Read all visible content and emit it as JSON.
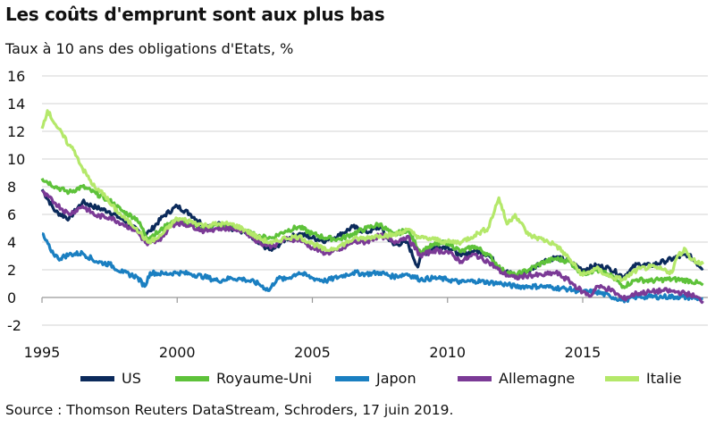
{
  "title": "Les coûts d'emprunt sont aux plus bas",
  "subtitle": "Taux à 10 ans des obligations d'Etats, %",
  "source": "Source : Thomson Reuters DataStream, Schroders, 17 juin 2019.",
  "chart_data": {
    "type": "line",
    "title": "Les coûts d'emprunt sont aux plus bas",
    "ylabel": "Taux à 10 ans des obligations d'Etats, %",
    "xlabel": "",
    "xlim": [
      1995,
      2019.45
    ],
    "ylim": [
      -2,
      16
    ],
    "x_ticks": [
      "1995",
      "2000",
      "2005",
      "2010",
      "2015"
    ],
    "y_ticks": [
      "16",
      "14",
      "12",
      "10",
      "8",
      "6",
      "4",
      "2",
      "0",
      "-2"
    ],
    "grid": true,
    "legend_position": "bottom",
    "series": [
      {
        "name": "US",
        "color": "#0b2a5b",
        "points": [
          [
            1995,
            7.8
          ],
          [
            1995.5,
            6.2
          ],
          [
            1996,
            5.7
          ],
          [
            1996.5,
            6.9
          ],
          [
            1997,
            6.5
          ],
          [
            1997.5,
            6.2
          ],
          [
            1998,
            5.6
          ],
          [
            1998.75,
            4.5
          ],
          [
            1999,
            4.8
          ],
          [
            1999.5,
            5.9
          ],
          [
            2000,
            6.6
          ],
          [
            2000.5,
            6.0
          ],
          [
            2001,
            5.2
          ],
          [
            2001.5,
            5.3
          ],
          [
            2002,
            5.0
          ],
          [
            2002.5,
            4.7
          ],
          [
            2003,
            3.9
          ],
          [
            2003.5,
            3.4
          ],
          [
            2004,
            4.2
          ],
          [
            2004.5,
            4.6
          ],
          [
            2005,
            4.3
          ],
          [
            2005.5,
            4.1
          ],
          [
            2006,
            4.5
          ],
          [
            2006.5,
            5.1
          ],
          [
            2007,
            4.7
          ],
          [
            2007.5,
            5.1
          ],
          [
            2008,
            3.8
          ],
          [
            2008.5,
            4.0
          ],
          [
            2008.9,
            2.2
          ],
          [
            2009,
            3.0
          ],
          [
            2009.5,
            3.6
          ],
          [
            2010,
            3.7
          ],
          [
            2010.5,
            3.0
          ],
          [
            2011,
            3.4
          ],
          [
            2011.5,
            3.1
          ],
          [
            2012,
            2.0
          ],
          [
            2012.5,
            1.6
          ],
          [
            2013,
            1.9
          ],
          [
            2013.5,
            2.6
          ],
          [
            2014,
            2.9
          ],
          [
            2014.5,
            2.6
          ],
          [
            2015,
            2.0
          ],
          [
            2015.5,
            2.3
          ],
          [
            2016,
            2.1
          ],
          [
            2016.5,
            1.5
          ],
          [
            2017,
            2.4
          ],
          [
            2017.5,
            2.3
          ],
          [
            2018,
            2.6
          ],
          [
            2018.5,
            2.9
          ],
          [
            2018.9,
            3.1
          ],
          [
            2019.2,
            2.5
          ],
          [
            2019.45,
            2.1
          ]
        ]
      },
      {
        "name": "Royaume-Uni",
        "color": "#5ec23a",
        "points": [
          [
            1995,
            8.6
          ],
          [
            1995.5,
            8.0
          ],
          [
            1996,
            7.6
          ],
          [
            1996.5,
            8.0
          ],
          [
            1997,
            7.5
          ],
          [
            1997.5,
            7.0
          ],
          [
            1998,
            6.2
          ],
          [
            1998.5,
            5.7
          ],
          [
            1998.9,
            4.3
          ],
          [
            1999.3,
            4.7
          ],
          [
            1999.8,
            5.5
          ],
          [
            2000,
            5.5
          ],
          [
            2000.5,
            5.2
          ],
          [
            2001,
            5.0
          ],
          [
            2001.5,
            5.2
          ],
          [
            2002,
            5.1
          ],
          [
            2002.5,
            4.8
          ],
          [
            2003,
            4.4
          ],
          [
            2003.5,
            4.3
          ],
          [
            2004,
            4.8
          ],
          [
            2004.5,
            5.1
          ],
          [
            2005,
            4.6
          ],
          [
            2005.5,
            4.3
          ],
          [
            2006,
            4.2
          ],
          [
            2006.5,
            4.6
          ],
          [
            2007,
            5.0
          ],
          [
            2007.5,
            5.3
          ],
          [
            2008,
            4.5
          ],
          [
            2008.5,
            4.9
          ],
          [
            2009,
            3.3
          ],
          [
            2009.5,
            3.8
          ],
          [
            2010,
            4.0
          ],
          [
            2010.5,
            3.3
          ],
          [
            2011,
            3.7
          ],
          [
            2011.5,
            3.1
          ],
          [
            2012,
            2.0
          ],
          [
            2012.5,
            1.6
          ],
          [
            2013,
            2.0
          ],
          [
            2013.5,
            2.5
          ],
          [
            2014,
            2.8
          ],
          [
            2014.5,
            2.6
          ],
          [
            2015,
            1.7
          ],
          [
            2015.5,
            2.0
          ],
          [
            2016,
            1.6
          ],
          [
            2016.5,
            0.8
          ],
          [
            2017,
            1.3
          ],
          [
            2017.5,
            1.2
          ],
          [
            2018,
            1.3
          ],
          [
            2018.5,
            1.3
          ],
          [
            2019,
            1.2
          ],
          [
            2019.45,
            0.9
          ]
        ]
      },
      {
        "name": "Japon",
        "color": "#1a7fc1",
        "points": [
          [
            1995,
            4.6
          ],
          [
            1995.3,
            3.5
          ],
          [
            1995.6,
            2.8
          ],
          [
            1996,
            3.1
          ],
          [
            1996.5,
            3.2
          ],
          [
            1997,
            2.6
          ],
          [
            1997.5,
            2.4
          ],
          [
            1998,
            1.8
          ],
          [
            1998.5,
            1.5
          ],
          [
            1998.8,
            0.8
          ],
          [
            1999,
            1.8
          ],
          [
            1999.5,
            1.7
          ],
          [
            2000,
            1.8
          ],
          [
            2000.5,
            1.7
          ],
          [
            2001,
            1.5
          ],
          [
            2001.5,
            1.2
          ],
          [
            2002,
            1.4
          ],
          [
            2002.5,
            1.3
          ],
          [
            2003,
            1.0
          ],
          [
            2003.4,
            0.5
          ],
          [
            2003.7,
            1.4
          ],
          [
            2004,
            1.3
          ],
          [
            2004.5,
            1.8
          ],
          [
            2005,
            1.4
          ],
          [
            2005.5,
            1.2
          ],
          [
            2006,
            1.5
          ],
          [
            2006.5,
            1.8
          ],
          [
            2007,
            1.7
          ],
          [
            2007.5,
            1.8
          ],
          [
            2008,
            1.5
          ],
          [
            2008.5,
            1.7
          ],
          [
            2009,
            1.3
          ],
          [
            2009.5,
            1.4
          ],
          [
            2010,
            1.3
          ],
          [
            2010.5,
            1.1
          ],
          [
            2011,
            1.2
          ],
          [
            2011.5,
            1.1
          ],
          [
            2012,
            1.0
          ],
          [
            2012.5,
            0.8
          ],
          [
            2013,
            0.8
          ],
          [
            2013.5,
            0.8
          ],
          [
            2014,
            0.7
          ],
          [
            2014.5,
            0.6
          ],
          [
            2015,
            0.4
          ],
          [
            2015.5,
            0.4
          ],
          [
            2016,
            0.1
          ],
          [
            2016.5,
            -0.2
          ],
          [
            2017,
            0.05
          ],
          [
            2017.5,
            0.05
          ],
          [
            2018,
            0.05
          ],
          [
            2018.5,
            0.05
          ],
          [
            2019,
            0.0
          ],
          [
            2019.45,
            -0.1
          ]
        ]
      },
      {
        "name": "Allemagne",
        "color": "#7b3a96",
        "points": [
          [
            1995,
            7.6
          ],
          [
            1995.5,
            6.8
          ],
          [
            1996,
            6.0
          ],
          [
            1996.5,
            6.6
          ],
          [
            1997,
            5.9
          ],
          [
            1997.5,
            5.8
          ],
          [
            1998,
            5.3
          ],
          [
            1998.5,
            4.8
          ],
          [
            1998.9,
            3.8
          ],
          [
            1999.3,
            4.1
          ],
          [
            1999.8,
            5.2
          ],
          [
            2000,
            5.4
          ],
          [
            2000.5,
            5.2
          ],
          [
            2001,
            4.8
          ],
          [
            2001.5,
            5.0
          ],
          [
            2002,
            5.0
          ],
          [
            2002.5,
            4.8
          ],
          [
            2003,
            4.0
          ],
          [
            2003.5,
            3.7
          ],
          [
            2004,
            4.2
          ],
          [
            2004.5,
            4.2
          ],
          [
            2005,
            3.6
          ],
          [
            2005.5,
            3.2
          ],
          [
            2006,
            3.4
          ],
          [
            2006.5,
            4.0
          ],
          [
            2007,
            4.0
          ],
          [
            2007.5,
            4.5
          ],
          [
            2008,
            4.0
          ],
          [
            2008.5,
            4.4
          ],
          [
            2009,
            3.0
          ],
          [
            2009.5,
            3.4
          ],
          [
            2010,
            3.3
          ],
          [
            2010.5,
            2.6
          ],
          [
            2011,
            3.1
          ],
          [
            2011.5,
            2.6
          ],
          [
            2012,
            1.8
          ],
          [
            2012.5,
            1.4
          ],
          [
            2013,
            1.6
          ],
          [
            2013.5,
            1.6
          ],
          [
            2014,
            1.8
          ],
          [
            2014.5,
            1.2
          ],
          [
            2015,
            0.4
          ],
          [
            2015.3,
            0.1
          ],
          [
            2015.5,
            0.8
          ],
          [
            2016,
            0.6
          ],
          [
            2016.5,
            -0.1
          ],
          [
            2017,
            0.3
          ],
          [
            2017.5,
            0.4
          ],
          [
            2018,
            0.5
          ],
          [
            2018.5,
            0.4
          ],
          [
            2019,
            0.2
          ],
          [
            2019.45,
            -0.25
          ]
        ]
      },
      {
        "name": "Italie",
        "color": "#b4e86a",
        "points": [
          [
            1995,
            12.2
          ],
          [
            1995.2,
            13.5
          ],
          [
            1995.5,
            12.5
          ],
          [
            1996,
            11.0
          ],
          [
            1996.2,
            10.6
          ],
          [
            1996.5,
            9.3
          ],
          [
            1997,
            7.8
          ],
          [
            1997.3,
            7.5
          ],
          [
            1997.5,
            6.8
          ],
          [
            1998,
            5.8
          ],
          [
            1998.5,
            5.0
          ],
          [
            1998.9,
            4.0
          ],
          [
            1999.3,
            4.3
          ],
          [
            1999.8,
            5.3
          ],
          [
            2000,
            5.7
          ],
          [
            2000.5,
            5.5
          ],
          [
            2001,
            5.2
          ],
          [
            2001.5,
            5.3
          ],
          [
            2002,
            5.3
          ],
          [
            2002.5,
            4.9
          ],
          [
            2003,
            4.3
          ],
          [
            2003.5,
            3.9
          ],
          [
            2004,
            4.3
          ],
          [
            2004.5,
            4.4
          ],
          [
            2005,
            3.9
          ],
          [
            2005.5,
            3.4
          ],
          [
            2006,
            3.7
          ],
          [
            2006.5,
            4.2
          ],
          [
            2007,
            4.3
          ],
          [
            2007.5,
            4.5
          ],
          [
            2008,
            4.5
          ],
          [
            2008.5,
            4.9
          ],
          [
            2009,
            4.3
          ],
          [
            2009.5,
            4.2
          ],
          [
            2010,
            4.0
          ],
          [
            2010.5,
            4.0
          ],
          [
            2011,
            4.5
          ],
          [
            2011.5,
            5.0
          ],
          [
            2011.9,
            7.2
          ],
          [
            2012.2,
            5.3
          ],
          [
            2012.5,
            6.0
          ],
          [
            2013,
            4.5
          ],
          [
            2013.5,
            4.2
          ],
          [
            2014,
            3.8
          ],
          [
            2014.5,
            2.8
          ],
          [
            2015,
            1.6
          ],
          [
            2015.5,
            2.1
          ],
          [
            2016,
            1.5
          ],
          [
            2016.5,
            1.3
          ],
          [
            2017,
            2.0
          ],
          [
            2017.5,
            2.2
          ],
          [
            2018,
            2.0
          ],
          [
            2018.3,
            1.8
          ],
          [
            2018.5,
            3.0
          ],
          [
            2018.8,
            3.5
          ],
          [
            2019,
            2.8
          ],
          [
            2019.45,
            2.4
          ]
        ]
      }
    ]
  }
}
